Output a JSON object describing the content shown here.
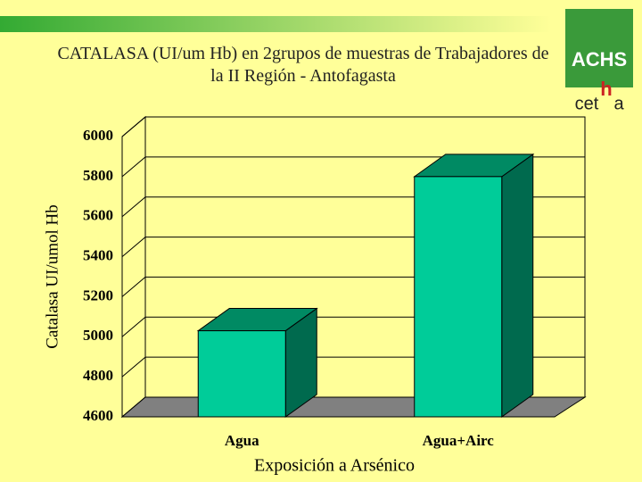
{
  "chart_data": {
    "type": "bar",
    "title": "CATALASA (UI/um Hb) en 2grupos de muestras de Trabajadores de la II Región - Antofagasta",
    "y_label": "Catalasa UI/umol Hb",
    "x_label": "Exposición a Arsénico",
    "categories": [
      "Agua",
      "Agua+Airc"
    ],
    "values": [
      5030,
      5800
    ],
    "color": "#00cc99",
    "ylim": [
      4600,
      6000
    ],
    "yticks": [
      4600,
      4800,
      5000,
      5200,
      5400,
      5600,
      5800,
      6000
    ],
    "grid": true
  },
  "logo": {
    "box": "ACHS",
    "text": [
      "cet",
      "h",
      "a"
    ]
  }
}
